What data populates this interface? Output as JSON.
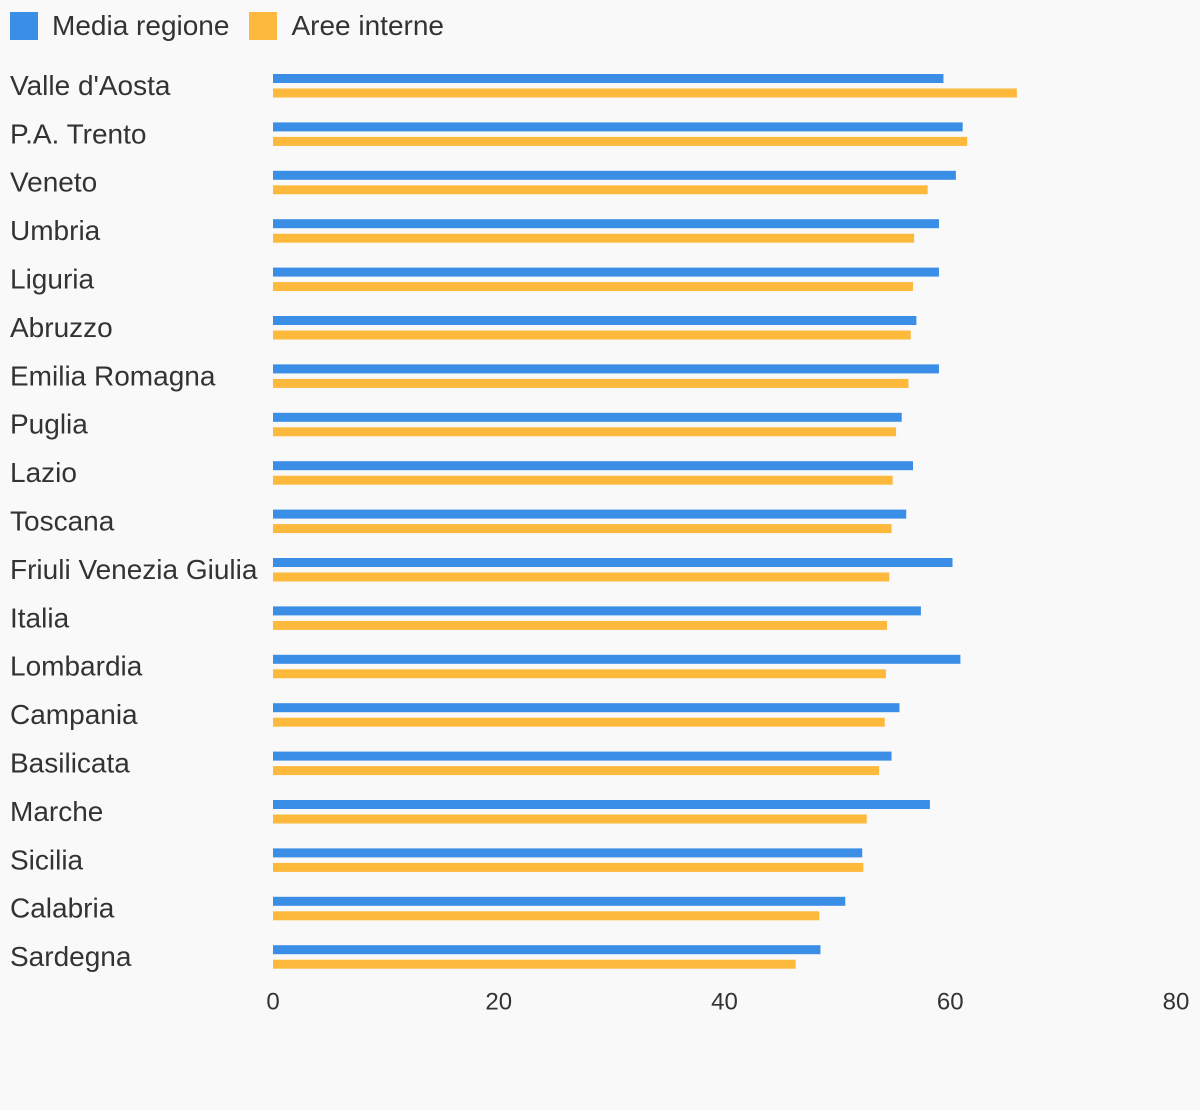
{
  "chart_data": {
    "type": "bar",
    "orientation": "horizontal",
    "categories": [
      "Valle d'Aosta",
      "P.A. Trento",
      "Veneto",
      "Umbria",
      "Liguria",
      "Abruzzo",
      "Emilia Romagna",
      "Puglia",
      "Lazio",
      "Toscana",
      "Friuli Venezia Giulia",
      "Italia",
      "Lombardia",
      "Campania",
      "Basilicata",
      "Marche",
      "Sicilia",
      "Calabria",
      "Sardegna"
    ],
    "series": [
      {
        "name": "Media regione",
        "color": "#3a8ee6",
        "values": [
          59.4,
          61.1,
          60.5,
          59.0,
          59.0,
          57.0,
          59.0,
          55.7,
          56.7,
          56.1,
          60.2,
          57.4,
          60.9,
          55.5,
          54.8,
          58.2,
          52.2,
          50.7,
          48.5
        ]
      },
      {
        "name": "Aree interne",
        "color": "#fdb93b",
        "values": [
          65.9,
          61.5,
          58.0,
          56.8,
          56.7,
          56.5,
          56.3,
          55.2,
          54.9,
          54.8,
          54.6,
          54.4,
          54.3,
          54.2,
          53.7,
          52.6,
          52.3,
          48.4,
          46.3
        ]
      }
    ],
    "xlim": [
      0,
      80
    ],
    "xticks": [
      "0",
      "20",
      "40",
      "60",
      "80"
    ],
    "legend_position": "top-left",
    "grid": false
  }
}
